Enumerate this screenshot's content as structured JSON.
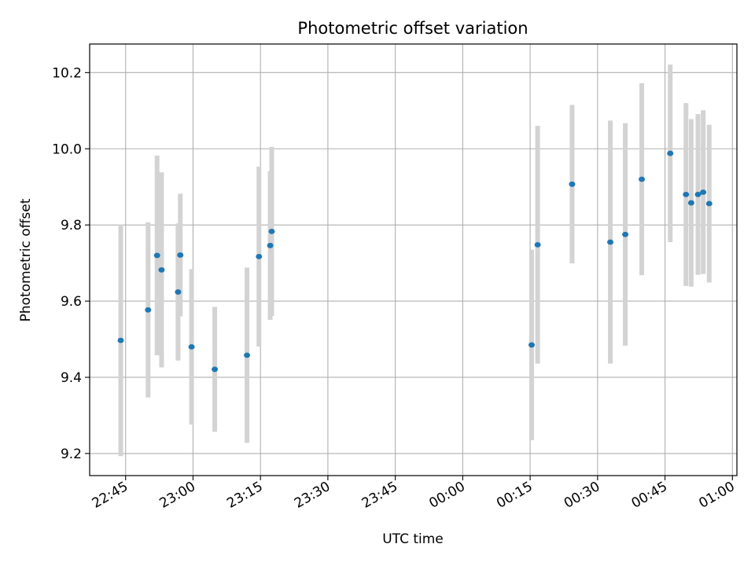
{
  "chart_data": {
    "type": "scatter",
    "title": "Photometric offset variation",
    "xlabel": "UTC time",
    "ylabel": "Photometric offset",
    "x_axis_type": "time",
    "xlim": [
      "22:37",
      "01:01"
    ],
    "ylim": [
      9.142,
      10.275
    ],
    "x_ticks": [
      "22:45",
      "23:00",
      "23:15",
      "23:30",
      "23:45",
      "00:00",
      "00:15",
      "00:30",
      "00:45",
      "01:00"
    ],
    "y_ticks": [
      9.2,
      9.4,
      9.6,
      9.8,
      10.0,
      10.2
    ],
    "grid": true,
    "marker_color": "#1f77b4",
    "errorbar_color": "#d3d3d3",
    "points": [
      {
        "t": "22:43:55",
        "y": 9.497,
        "err": 0.304
      },
      {
        "t": "22:50:00",
        "y": 9.577,
        "err": 0.23
      },
      {
        "t": "22:52:00",
        "y": 9.72,
        "err": 0.262
      },
      {
        "t": "22:53:00",
        "y": 9.682,
        "err": 0.256
      },
      {
        "t": "22:56:40",
        "y": 9.624,
        "err": 0.18
      },
      {
        "t": "22:57:10",
        "y": 9.721,
        "err": 0.161
      },
      {
        "t": "22:59:40",
        "y": 9.48,
        "err": 0.204
      },
      {
        "t": "23:04:50",
        "y": 9.421,
        "err": 0.164
      },
      {
        "t": "23:12:00",
        "y": 9.458,
        "err": 0.23
      },
      {
        "t": "23:14:40",
        "y": 9.717,
        "err": 0.236
      },
      {
        "t": "23:17:10",
        "y": 9.746,
        "err": 0.195
      },
      {
        "t": "23:17:30",
        "y": 9.783,
        "err": 0.222
      },
      {
        "t": "00:15:20",
        "y": 9.485,
        "err": 0.25
      },
      {
        "t": "00:16:40",
        "y": 9.748,
        "err": 0.312
      },
      {
        "t": "00:24:20",
        "y": 9.907,
        "err": 0.208
      },
      {
        "t": "00:32:50",
        "y": 9.755,
        "err": 0.319
      },
      {
        "t": "00:36:10",
        "y": 9.775,
        "err": 0.292
      },
      {
        "t": "00:39:50",
        "y": 9.92,
        "err": 0.252
      },
      {
        "t": "00:46:10",
        "y": 9.988,
        "err": 0.233
      },
      {
        "t": "00:49:40",
        "y": 9.88,
        "err": 0.24
      },
      {
        "t": "00:50:50",
        "y": 9.858,
        "err": 0.22
      },
      {
        "t": "00:52:20",
        "y": 9.88,
        "err": 0.211
      },
      {
        "t": "00:53:30",
        "y": 9.886,
        "err": 0.215
      },
      {
        "t": "00:54:50",
        "y": 9.856,
        "err": 0.207
      }
    ]
  }
}
